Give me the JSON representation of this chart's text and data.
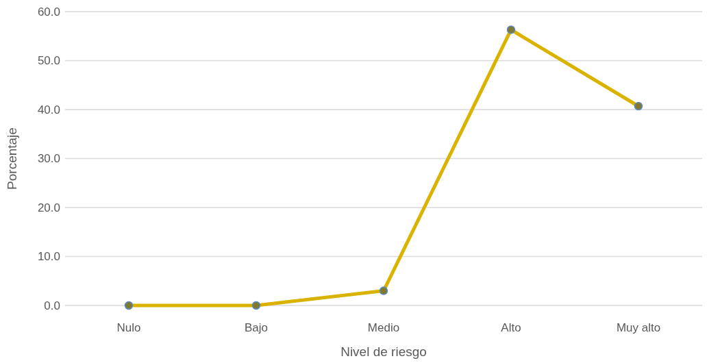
{
  "chart_data": {
    "type": "line",
    "xlabel": "Nivel de riesgo",
    "ylabel": "Porcentaje",
    "categories": [
      "Nulo",
      "Bajo",
      "Medio",
      "Alto",
      "Muy alto"
    ],
    "series": [
      {
        "color": "#d9b300",
        "values": [
          0,
          0,
          3.0,
          56.3,
          40.7
        ]
      }
    ],
    "ylim": [
      0,
      60
    ],
    "yticks": [
      {
        "value": 0,
        "label": "0.0"
      },
      {
        "value": 10,
        "label": "10.0"
      },
      {
        "value": 20,
        "label": "20.0"
      },
      {
        "value": 30,
        "label": "30.0"
      },
      {
        "value": 40,
        "label": "40.0"
      },
      {
        "value": 50,
        "label": "50.0"
      },
      {
        "value": 60,
        "label": "60.0"
      }
    ],
    "grid": "y",
    "marker": "circle",
    "line_style": "solid"
  }
}
